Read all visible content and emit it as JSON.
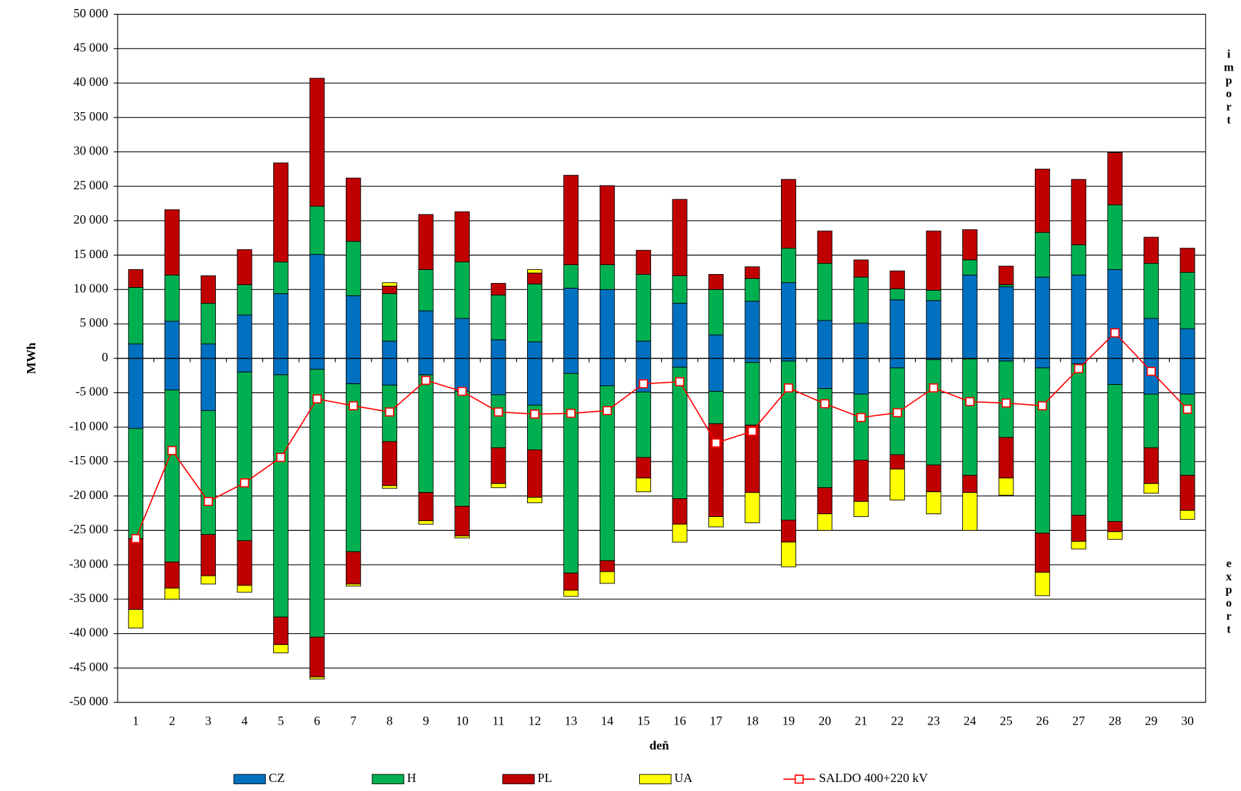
{
  "chart_data": {
    "type": "stacked_bar",
    "x_label": "deň",
    "y_label": "MWh",
    "side_labels": {
      "top": "import",
      "bottom": "export"
    },
    "categories": [
      "1",
      "2",
      "3",
      "4",
      "5",
      "6",
      "7",
      "8",
      "9",
      "10",
      "11",
      "12",
      "13",
      "14",
      "15",
      "16",
      "17",
      "18",
      "19",
      "20",
      "21",
      "22",
      "23",
      "24",
      "25",
      "26",
      "27",
      "28",
      "29",
      "30"
    ],
    "ylim": [
      -50000,
      50000
    ],
    "yticks": [
      {
        "value": -50000,
        "label": "-50 000"
      },
      {
        "value": -45000,
        "label": "-45 000"
      },
      {
        "value": -40000,
        "label": "-40 000"
      },
      {
        "value": -35000,
        "label": "-35 000"
      },
      {
        "value": -30000,
        "label": "-30 000"
      },
      {
        "value": -25000,
        "label": "-25 000"
      },
      {
        "value": -20000,
        "label": "-20 000"
      },
      {
        "value": -15000,
        "label": "-15 000"
      },
      {
        "value": -10000,
        "label": "-10 000"
      },
      {
        "value": -5000,
        "label": "-5 000"
      },
      0,
      {
        "value": 5000,
        "label": "5 000"
      },
      {
        "value": 10000,
        "label": "10 000"
      },
      {
        "value": 15000,
        "label": "15 000"
      },
      {
        "value": 20000,
        "label": "20 000"
      },
      {
        "value": 25000,
        "label": "25 000"
      },
      {
        "value": 30000,
        "label": "30 000"
      },
      {
        "value": 35000,
        "label": "35 000"
      },
      {
        "value": 40000,
        "label": "40 000"
      },
      {
        "value": 45000,
        "label": "45 000"
      },
      {
        "value": 50000,
        "label": "50 000"
      }
    ],
    "grid": true,
    "series": [
      {
        "name": "CZ",
        "color": "#0070c0",
        "import": [
          2100,
          5400,
          2100,
          6300,
          9400,
          15100,
          9100,
          2500,
          6900,
          5800,
          2700,
          2400,
          10200,
          10000,
          2500,
          8000,
          3400,
          8300,
          11000,
          5500,
          5100,
          8500,
          8400,
          12100,
          10400,
          11800,
          12100,
          12900,
          5800,
          4300
        ],
        "export": [
          -10200,
          -4600,
          -7600,
          -2000,
          -2400,
          -1600,
          -3700,
          -3900,
          -2400,
          -4800,
          -5300,
          -6800,
          -2200,
          -4000,
          -4900,
          -1300,
          -4800,
          -600,
          -400,
          -4400,
          -5200,
          -1400,
          -200,
          -100,
          -400,
          -1400,
          -800,
          -3800,
          -5200,
          -5200
        ]
      },
      {
        "name": "H",
        "color": "#00b050",
        "import": [
          8200,
          6700,
          5900,
          4400,
          4600,
          7000,
          7900,
          6900,
          6000,
          8200,
          6500,
          8400,
          3400,
          3600,
          9700,
          4000,
          6600,
          3300,
          5000,
          8300,
          6700,
          1600,
          1500,
          2200,
          300,
          6500,
          4400,
          9400,
          8000,
          8200
        ],
        "export": [
          -16000,
          -25000,
          -18000,
          -24500,
          -35200,
          -38900,
          -24400,
          -8200,
          -17100,
          -16700,
          -7700,
          -6500,
          -29000,
          -25400,
          -9500,
          -19100,
          -4700,
          -9100,
          -23100,
          -14400,
          -9600,
          -12600,
          -15300,
          -16900,
          -11100,
          -24000,
          -22000,
          -19900,
          -7800,
          -11800
        ]
      },
      {
        "name": "PL",
        "color": "#c00000",
        "import": [
          2600,
          9500,
          4000,
          5100,
          14400,
          18600,
          9200,
          1100,
          8000,
          7300,
          1700,
          1600,
          13000,
          11500,
          3500,
          11100,
          2200,
          1700,
          10000,
          4700,
          2500,
          2600,
          8600,
          4400,
          2700,
          9200,
          9500,
          7600,
          3800,
          3500
        ],
        "export": [
          -10300,
          -3800,
          -6000,
          -6500,
          -4000,
          -5800,
          -4700,
          -6400,
          -4100,
          -4300,
          -5200,
          -6900,
          -2500,
          -1600,
          -3000,
          -3700,
          -13500,
          -9800,
          -3200,
          -3800,
          -6000,
          -2100,
          -3900,
          -2500,
          -5900,
          -5700,
          -3800,
          -1500,
          -5200,
          -5100
        ]
      },
      {
        "name": "UA",
        "color": "#ffff00",
        "import": [
          0,
          0,
          0,
          0,
          0,
          0,
          0,
          500,
          0,
          0,
          0,
          500,
          0,
          0,
          0,
          0,
          0,
          0,
          0,
          0,
          0,
          0,
          0,
          0,
          0,
          0,
          0,
          0,
          0,
          0
        ],
        "export": [
          -2700,
          -1600,
          -1200,
          -1000,
          -1200,
          -300,
          -300,
          -400,
          -500,
          -300,
          -600,
          -800,
          -900,
          -1700,
          -2000,
          -2600,
          -1500,
          -4400,
          -3600,
          -2400,
          -2200,
          -4500,
          -3200,
          -5500,
          -2500,
          -3400,
          -1100,
          -1100,
          -1400,
          -1300
        ]
      }
    ],
    "line": {
      "name": "SALDO 400+220 kV",
      "color": "#ff0000",
      "values": [
        -26200,
        -13400,
        -20800,
        -18100,
        -14400,
        -5900,
        -6900,
        -7800,
        -3200,
        -4800,
        -7800,
        -8100,
        -8000,
        -7600,
        -3700,
        -3400,
        -12300,
        -10600,
        -4300,
        -6600,
        -8600,
        -7900,
        -4300,
        -6300,
        -6500,
        -6900,
        -1500,
        3700,
        -1900,
        -7400
      ]
    }
  }
}
